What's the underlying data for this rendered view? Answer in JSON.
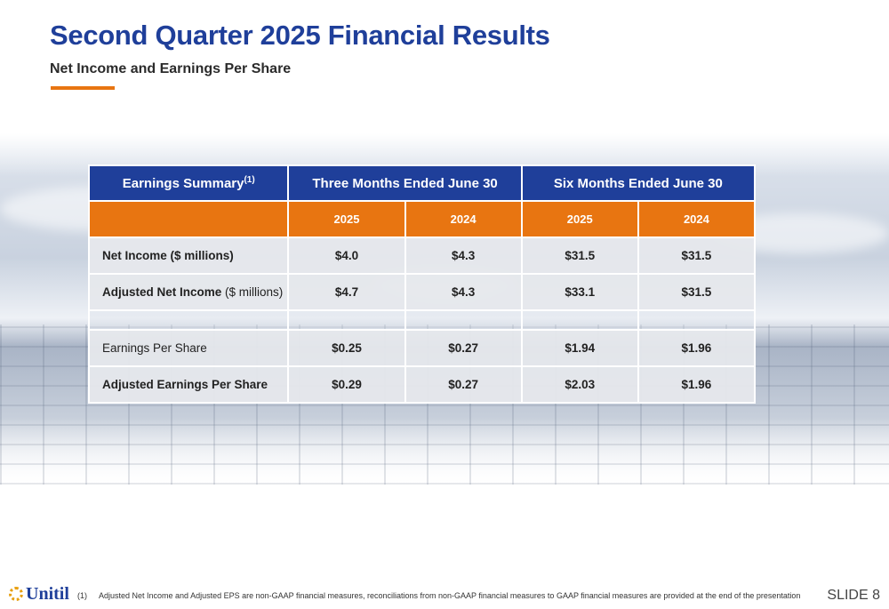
{
  "header": {
    "title": "Second Quarter 2025 Financial Results",
    "subtitle": "Net Income and Earnings Per Share",
    "accent_color": "#e87511",
    "title_color": "#1f3f9a"
  },
  "table": {
    "summary_label": "Earnings Summary",
    "summary_sup": "(1)",
    "group_three": "Three Months Ended June 30",
    "group_six": "Six Months Ended June 30",
    "years": [
      "2025",
      "2024",
      "2025",
      "2024"
    ],
    "rows": [
      {
        "label": "Net Income ($ millions)",
        "values": [
          "$4.0",
          "$4.3",
          "$31.5",
          "$31.5"
        ]
      },
      {
        "label_main": "Adjusted Net Income",
        "label_unit": " ($ millions)",
        "values": [
          "$4.7",
          "$4.3",
          "$33.1",
          "$31.5"
        ]
      },
      {
        "label": "Earnings Per Share",
        "values": [
          "$0.25",
          "$0.27",
          "$1.94",
          "$1.96"
        ]
      },
      {
        "label": "Adjusted Earnings Per Share",
        "values": [
          "$0.29",
          "$0.27",
          "$2.03",
          "$1.96"
        ]
      }
    ]
  },
  "footer": {
    "logo_text": "Unitil",
    "footnote_number": "(1)",
    "footnote": "Adjusted Net Income and Adjusted EPS are non-GAAP financial measures, reconciliations from non-GAAP financial measures to GAAP financial measures are provided at the end of the presentation",
    "slide_number": "SLIDE 8"
  }
}
